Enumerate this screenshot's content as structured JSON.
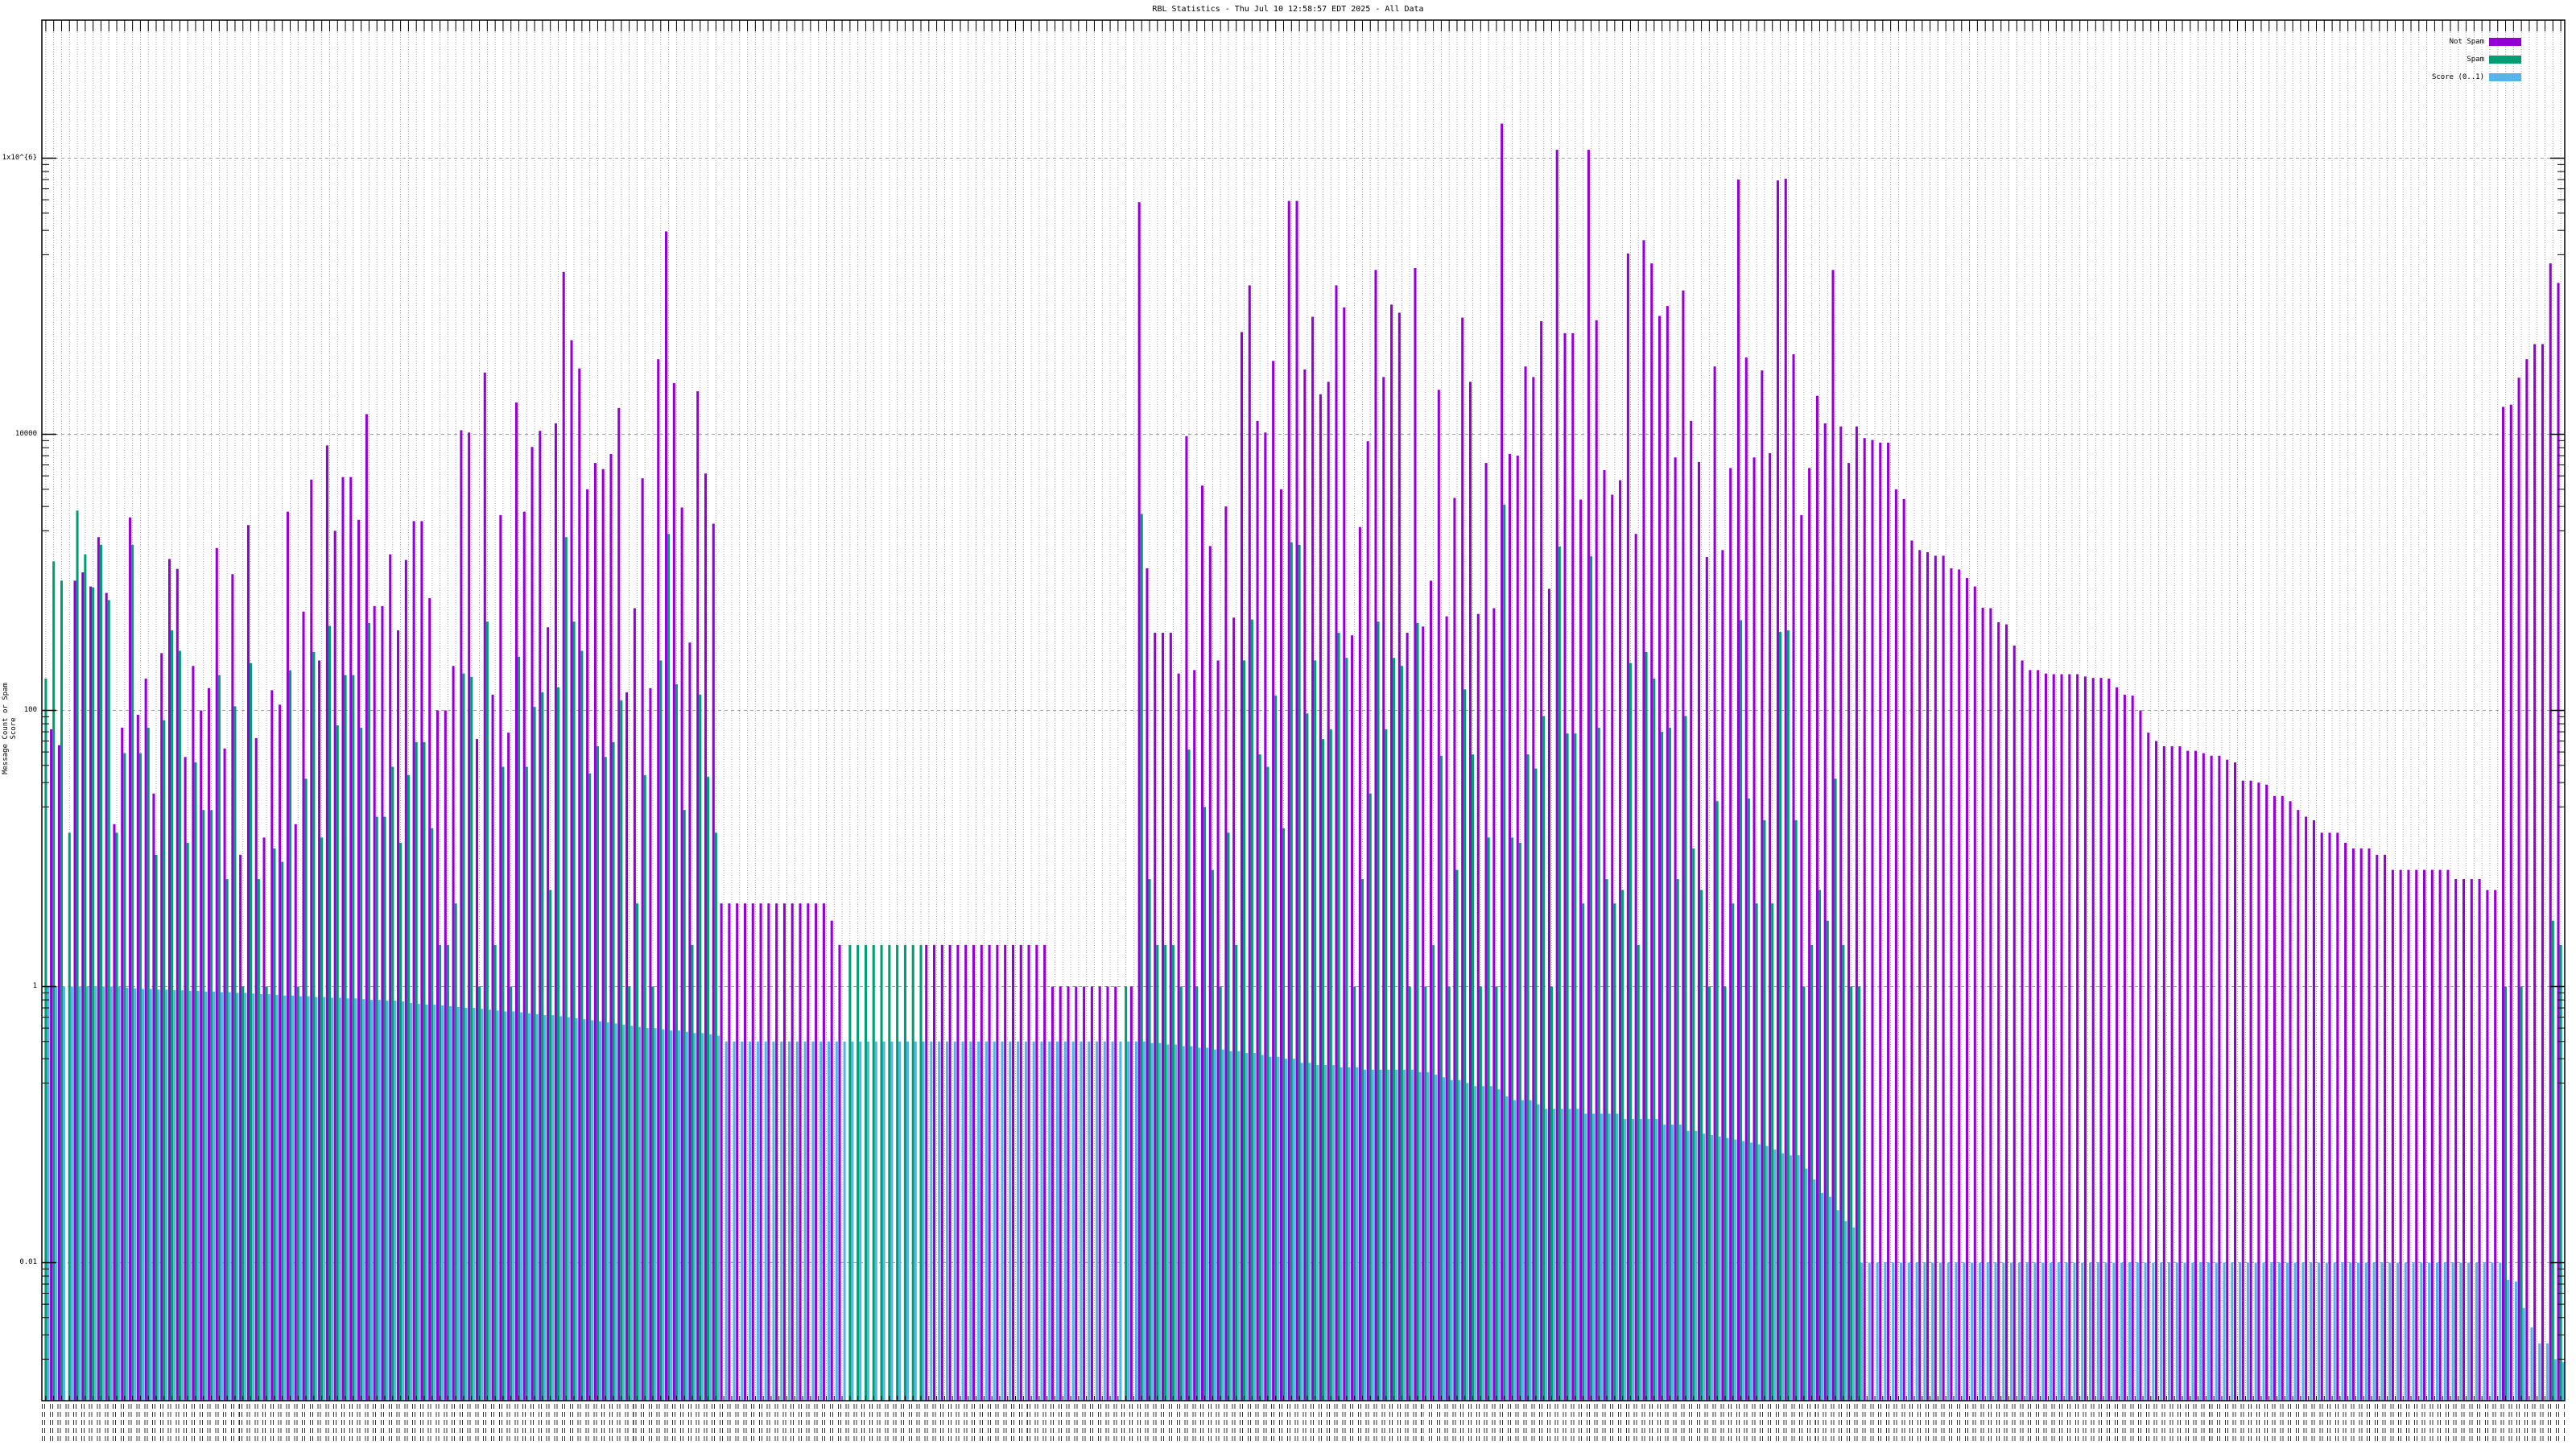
{
  "chart_data": {
    "type": "bar",
    "title": "RBL Statistics - Thu Jul 10 12:58:57 EDT 2025 - All Data",
    "xlabel": "",
    "ylabel": "Message Count or Spam Score",
    "yscale": "log",
    "ylim": [
      0.001,
      10000000
    ],
    "ytick_values": [
      1000000,
      10000,
      100,
      1,
      0.01
    ],
    "ytick_labels": [
      "1x10^{6}",
      "10000",
      "100",
      "1",
      "0.01"
    ],
    "grid": true,
    "legend_position": "top-right",
    "series": [
      {
        "name": "Not Spam",
        "color": "#9400d3",
        "values": [
          0,
          73,
          56,
          0,
          870,
          1000,
          790,
          1800,
          710,
          15,
          75,
          2500,
          93,
          170,
          25,
          260,
          1250,
          1060,
          46,
          210,
          100,
          145,
          1500,
          53,
          970,
          9,
          2200,
          63,
          12,
          140,
          110,
          2750,
          15,
          520,
          4700,
          230,
          8300,
          2000,
          4900,
          4900,
          2400,
          14000,
          570,
          570,
          1350,
          380,
          1230,
          2350,
          2350,
          650,
          100,
          100,
          210,
          10700,
          10300,
          62,
          28000,
          130,
          2600,
          69,
          17000,
          2750,
          8100,
          10600,
          400,
          12000,
          150000,
          48000,
          30000,
          4000,
          6200,
          5600,
          7200,
          15500,
          135,
          550,
          4800,
          145,
          35000,
          295000,
          23500,
          2950,
          310,
          20500,
          5200,
          2250,
          4,
          4,
          4,
          4,
          4,
          4,
          4,
          4,
          4,
          4,
          4,
          4,
          4,
          4,
          3,
          2,
          0,
          0,
          0,
          0,
          0,
          0,
          0,
          0,
          0,
          0,
          2,
          2,
          2,
          2,
          2,
          2,
          2,
          2,
          2,
          2,
          2,
          2,
          2,
          2,
          2,
          2,
          1,
          1,
          1,
          1,
          1,
          1,
          1,
          1,
          1,
          0,
          1,
          480000,
          1070,
          365,
          365,
          365,
          185,
          9700,
          196,
          4250,
          1550,
          230,
          3000,
          470,
          55000,
          120000,
          12500,
          10300,
          34000,
          4000,
          490000,
          490000,
          29500,
          71000,
          19500,
          24000,
          120000,
          83000,
          350,
          2130,
          8900,
          155000,
          26000,
          87000,
          76000,
          365,
          160000,
          405,
          870,
          21000,
          480,
          3460,
          70000,
          24000,
          500,
          6200,
          550,
          1780000,
          7200,
          7000,
          31000,
          26000,
          66000,
          760,
          1150000,
          54000,
          54000,
          3370,
          1150000,
          67000,
          5500,
          3650,
          4650,
          204000,
          1900,
          255000,
          173000,
          72000,
          85000,
          6800,
          110000,
          12500,
          6300,
          1290,
          31000,
          1450,
          5700,
          700000,
          36000,
          6800,
          29000,
          7300,
          690000,
          710000,
          38000,
          2600,
          5700,
          19000,
          12000,
          155000,
          11400,
          6200,
          11400,
          9400,
          9100,
          8700,
          8700,
          4000,
          3400,
          1700,
          1450,
          1400,
          1320,
          1320,
          1070,
          1050,
          910,
          790,
          555,
          550,
          435,
          420,
          295,
          230,
          196,
          196,
          185,
          183,
          183,
          183,
          183,
          176,
          172,
          172,
          170,
          147,
          130,
          128,
          100,
          69,
          60,
          55,
          55,
          55,
          51,
          51,
          49,
          47,
          47,
          44,
          42,
          31,
          31,
          30,
          29,
          24,
          24,
          22,
          19,
          17,
          16,
          13,
          13,
          13,
          11,
          10,
          10,
          10,
          9,
          9,
          7,
          7,
          7,
          7,
          7,
          7,
          7,
          7,
          6,
          6,
          6,
          6,
          5,
          5,
          15800,
          16400,
          25700,
          35000,
          45000,
          45000,
          173000,
          125000
        ]
      },
      {
        "name": "Spam",
        "color": "#009e73",
        "values": [
          170,
          1200,
          870,
          13,
          2800,
          1350,
          780,
          1580,
          630,
          13,
          49,
          1580,
          49,
          75,
          9,
          85,
          380,
          270,
          11,
          42,
          19,
          19,
          180,
          6,
          107,
          1,
          220,
          6,
          1,
          10,
          8,
          195,
          1,
          32,
          265,
          12,
          410,
          78,
          180,
          180,
          75,
          430,
          17,
          17,
          39,
          11,
          34,
          59,
          59,
          14,
          2,
          2,
          4,
          185,
          175,
          1,
          440,
          2,
          39,
          1,
          245,
          39,
          106,
          135,
          5,
          147,
          1800,
          440,
          270,
          35,
          55,
          46,
          59,
          118,
          1,
          4,
          34,
          1,
          230,
          1900,
          155,
          19,
          2,
          130,
          33,
          13,
          0,
          0,
          0,
          0,
          0,
          0,
          0,
          0,
          0,
          0,
          0,
          0,
          0,
          0,
          0,
          0,
          2,
          2,
          2,
          2,
          2,
          2,
          2,
          2,
          2,
          2,
          0,
          0,
          0,
          0,
          0,
          0,
          0,
          0,
          0,
          0,
          0,
          0,
          0,
          0,
          0,
          0,
          0,
          0,
          0,
          0,
          0,
          0,
          0,
          0,
          0,
          1,
          0,
          2650,
          6,
          2,
          2,
          2,
          1,
          52,
          1,
          20,
          7,
          1,
          13,
          2,
          230,
          455,
          48,
          39,
          128,
          14,
          1650,
          1580,
          95,
          230,
          62,
          73,
          365,
          240,
          1,
          6,
          25,
          440,
          73,
          240,
          210,
          1,
          430,
          1,
          2,
          47,
          1,
          7,
          142,
          48,
          1,
          12,
          1,
          3100,
          12,
          11,
          48,
          38,
          91,
          1,
          1540,
          68,
          68,
          4,
          1310,
          75,
          6,
          4,
          5,
          220,
          2,
          265,
          170,
          70,
          75,
          6,
          91,
          10,
          5,
          1,
          22,
          1,
          4,
          450,
          23,
          4,
          16,
          4,
          370,
          380,
          16,
          1,
          2,
          5,
          3,
          32,
          2,
          1,
          1,
          0,
          0,
          0,
          0,
          0,
          0,
          0,
          0,
          0,
          0,
          0,
          0,
          0,
          0,
          0,
          0,
          0,
          0,
          0,
          0,
          0,
          0,
          0,
          0,
          0,
          0,
          0,
          0,
          0,
          0,
          0,
          0,
          0,
          0,
          0,
          0,
          0,
          0,
          0,
          0,
          0,
          0,
          0,
          0,
          0,
          0,
          0,
          0,
          0,
          0,
          0,
          0,
          0,
          0,
          0,
          0,
          0,
          0,
          0,
          0,
          0,
          0,
          0,
          0,
          0,
          0,
          0,
          0,
          0,
          0,
          0,
          0,
          0,
          0,
          0,
          0,
          0,
          0,
          0,
          0,
          0,
          1,
          0,
          1,
          0,
          0,
          0,
          3,
          2
        ]
      },
      {
        "name": "Score (0..1)",
        "color": "#56b4e9",
        "values": [
          1,
          1,
          1,
          1,
          1,
          1,
          1,
          1,
          1,
          1,
          0.98,
          0.97,
          0.96,
          0.96,
          0.95,
          0.95,
          0.94,
          0.94,
          0.93,
          0.93,
          0.92,
          0.92,
          0.91,
          0.91,
          0.9,
          0.9,
          0.89,
          0.88,
          0.88,
          0.87,
          0.86,
          0.86,
          0.85,
          0.85,
          0.84,
          0.84,
          0.83,
          0.83,
          0.82,
          0.82,
          0.81,
          0.8,
          0.8,
          0.79,
          0.79,
          0.78,
          0.76,
          0.75,
          0.74,
          0.74,
          0.73,
          0.72,
          0.71,
          0.7,
          0.7,
          0.69,
          0.68,
          0.67,
          0.66,
          0.66,
          0.65,
          0.64,
          0.63,
          0.62,
          0.62,
          0.61,
          0.6,
          0.59,
          0.58,
          0.57,
          0.56,
          0.55,
          0.54,
          0.53,
          0.52,
          0.51,
          0.5,
          0.5,
          0.49,
          0.48,
          0.48,
          0.47,
          0.46,
          0.46,
          0.45,
          0.44,
          0.4,
          0.4,
          0.4,
          0.4,
          0.4,
          0.4,
          0.4,
          0.4,
          0.4,
          0.4,
          0.4,
          0.4,
          0.4,
          0.4,
          0.4,
          0.4,
          0.4,
          0.4,
          0.4,
          0.4,
          0.4,
          0.4,
          0.4,
          0.4,
          0.4,
          0.4,
          0.4,
          0.4,
          0.4,
          0.4,
          0.4,
          0.4,
          0.4,
          0.4,
          0.4,
          0.4,
          0.4,
          0.4,
          0.4,
          0.4,
          0.4,
          0.4,
          0.4,
          0.4,
          0.4,
          0.4,
          0.4,
          0.4,
          0.4,
          0.4,
          0.4,
          0.4,
          0.4,
          0.4,
          0.39,
          0.39,
          0.38,
          0.38,
          0.37,
          0.37,
          0.36,
          0.36,
          0.35,
          0.35,
          0.34,
          0.34,
          0.33,
          0.33,
          0.32,
          0.31,
          0.31,
          0.3,
          0.3,
          0.28,
          0.28,
          0.27,
          0.27,
          0.27,
          0.26,
          0.26,
          0.26,
          0.25,
          0.25,
          0.25,
          0.25,
          0.25,
          0.25,
          0.25,
          0.24,
          0.24,
          0.23,
          0.22,
          0.21,
          0.21,
          0.2,
          0.19,
          0.19,
          0.19,
          0.18,
          0.16,
          0.15,
          0.15,
          0.15,
          0.14,
          0.13,
          0.13,
          0.13,
          0.13,
          0.13,
          0.12,
          0.12,
          0.12,
          0.12,
          0.12,
          0.11,
          0.11,
          0.11,
          0.11,
          0.11,
          0.1,
          0.1,
          0.1,
          0.09,
          0.09,
          0.086,
          0.084,
          0.082,
          0.08,
          0.078,
          0.076,
          0.074,
          0.072,
          0.07,
          0.066,
          0.062,
          0.06,
          0.06,
          0.048,
          0.04,
          0.032,
          0.03,
          0.024,
          0.02,
          0.018,
          0.01,
          0.01,
          0.01,
          0.01,
          0.01,
          0.01,
          0.01,
          0.01,
          0.01,
          0.01,
          0.01,
          0.01,
          0.01,
          0.01,
          0.01,
          0.01,
          0.01,
          0.01,
          0.01,
          0.01,
          0.01,
          0.01,
          0.01,
          0.01,
          0.01,
          0.01,
          0.01,
          0.01,
          0.01,
          0.01,
          0.01,
          0.01,
          0.01,
          0.01,
          0.01,
          0.01,
          0.01,
          0.01,
          0.01,
          0.01,
          0.01,
          0.01,
          0.01,
          0.01,
          0.01,
          0.01,
          0.01,
          0.01,
          0.01,
          0.01,
          0.01,
          0.01,
          0.01,
          0.01,
          0.01,
          0.01,
          0.01,
          0.01,
          0.01,
          0.01,
          0.01,
          0.01,
          0.01,
          0.01,
          0.01,
          0.01,
          0.01,
          0.01,
          0.01,
          0.01,
          0.01,
          0.01,
          0.01,
          0.01,
          0.01,
          0.01,
          0.01,
          0.01,
          0.01,
          0.01,
          0.01,
          0.01,
          0.0075,
          0.0073,
          0.0047,
          0.0034,
          0.0026,
          0.0026,
          0.002,
          0.0019
        ]
      }
    ]
  }
}
